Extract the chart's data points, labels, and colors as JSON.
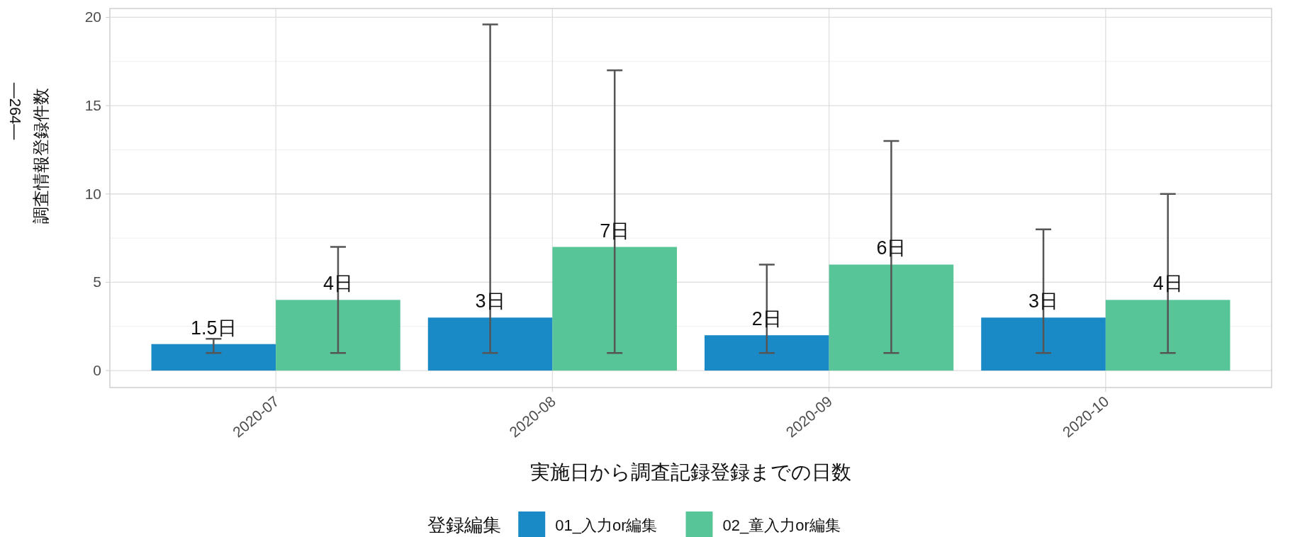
{
  "chart_data": {
    "type": "bar",
    "xlabel": "実施日から調査記録登録までの日数",
    "ylabel": "調査情報登録件数",
    "legend_title": "登録編集",
    "legend": "bottom",
    "grid": true,
    "categories": [
      "2020-07",
      "2020-08",
      "2020-09",
      "2020-10"
    ],
    "series": [
      {
        "name": "01_入力or編集",
        "color": "#1a8ac6",
        "values": [
          1.5,
          3,
          2,
          3
        ],
        "errors": [
          [
            1,
            1.8
          ],
          [
            1,
            19.6
          ],
          [
            1,
            6
          ],
          [
            1,
            8
          ]
        ],
        "value_labels": [
          "1.5日",
          "3日",
          "2日",
          "3日"
        ]
      },
      {
        "name": "02_童入力or編集",
        "color": "#57c597",
        "values": [
          4,
          7,
          6,
          4
        ],
        "errors": [
          [
            1,
            7
          ],
          [
            1,
            17
          ],
          [
            1,
            13
          ],
          [
            1,
            10
          ]
        ],
        "value_labels": [
          "4日",
          "7日",
          "6日",
          "4日"
        ]
      }
    ],
    "ylim": [
      -0.96,
      20.5
    ],
    "yticks": [
      0,
      5,
      10,
      15,
      20
    ],
    "annotations": [
      "—264—"
    ]
  }
}
